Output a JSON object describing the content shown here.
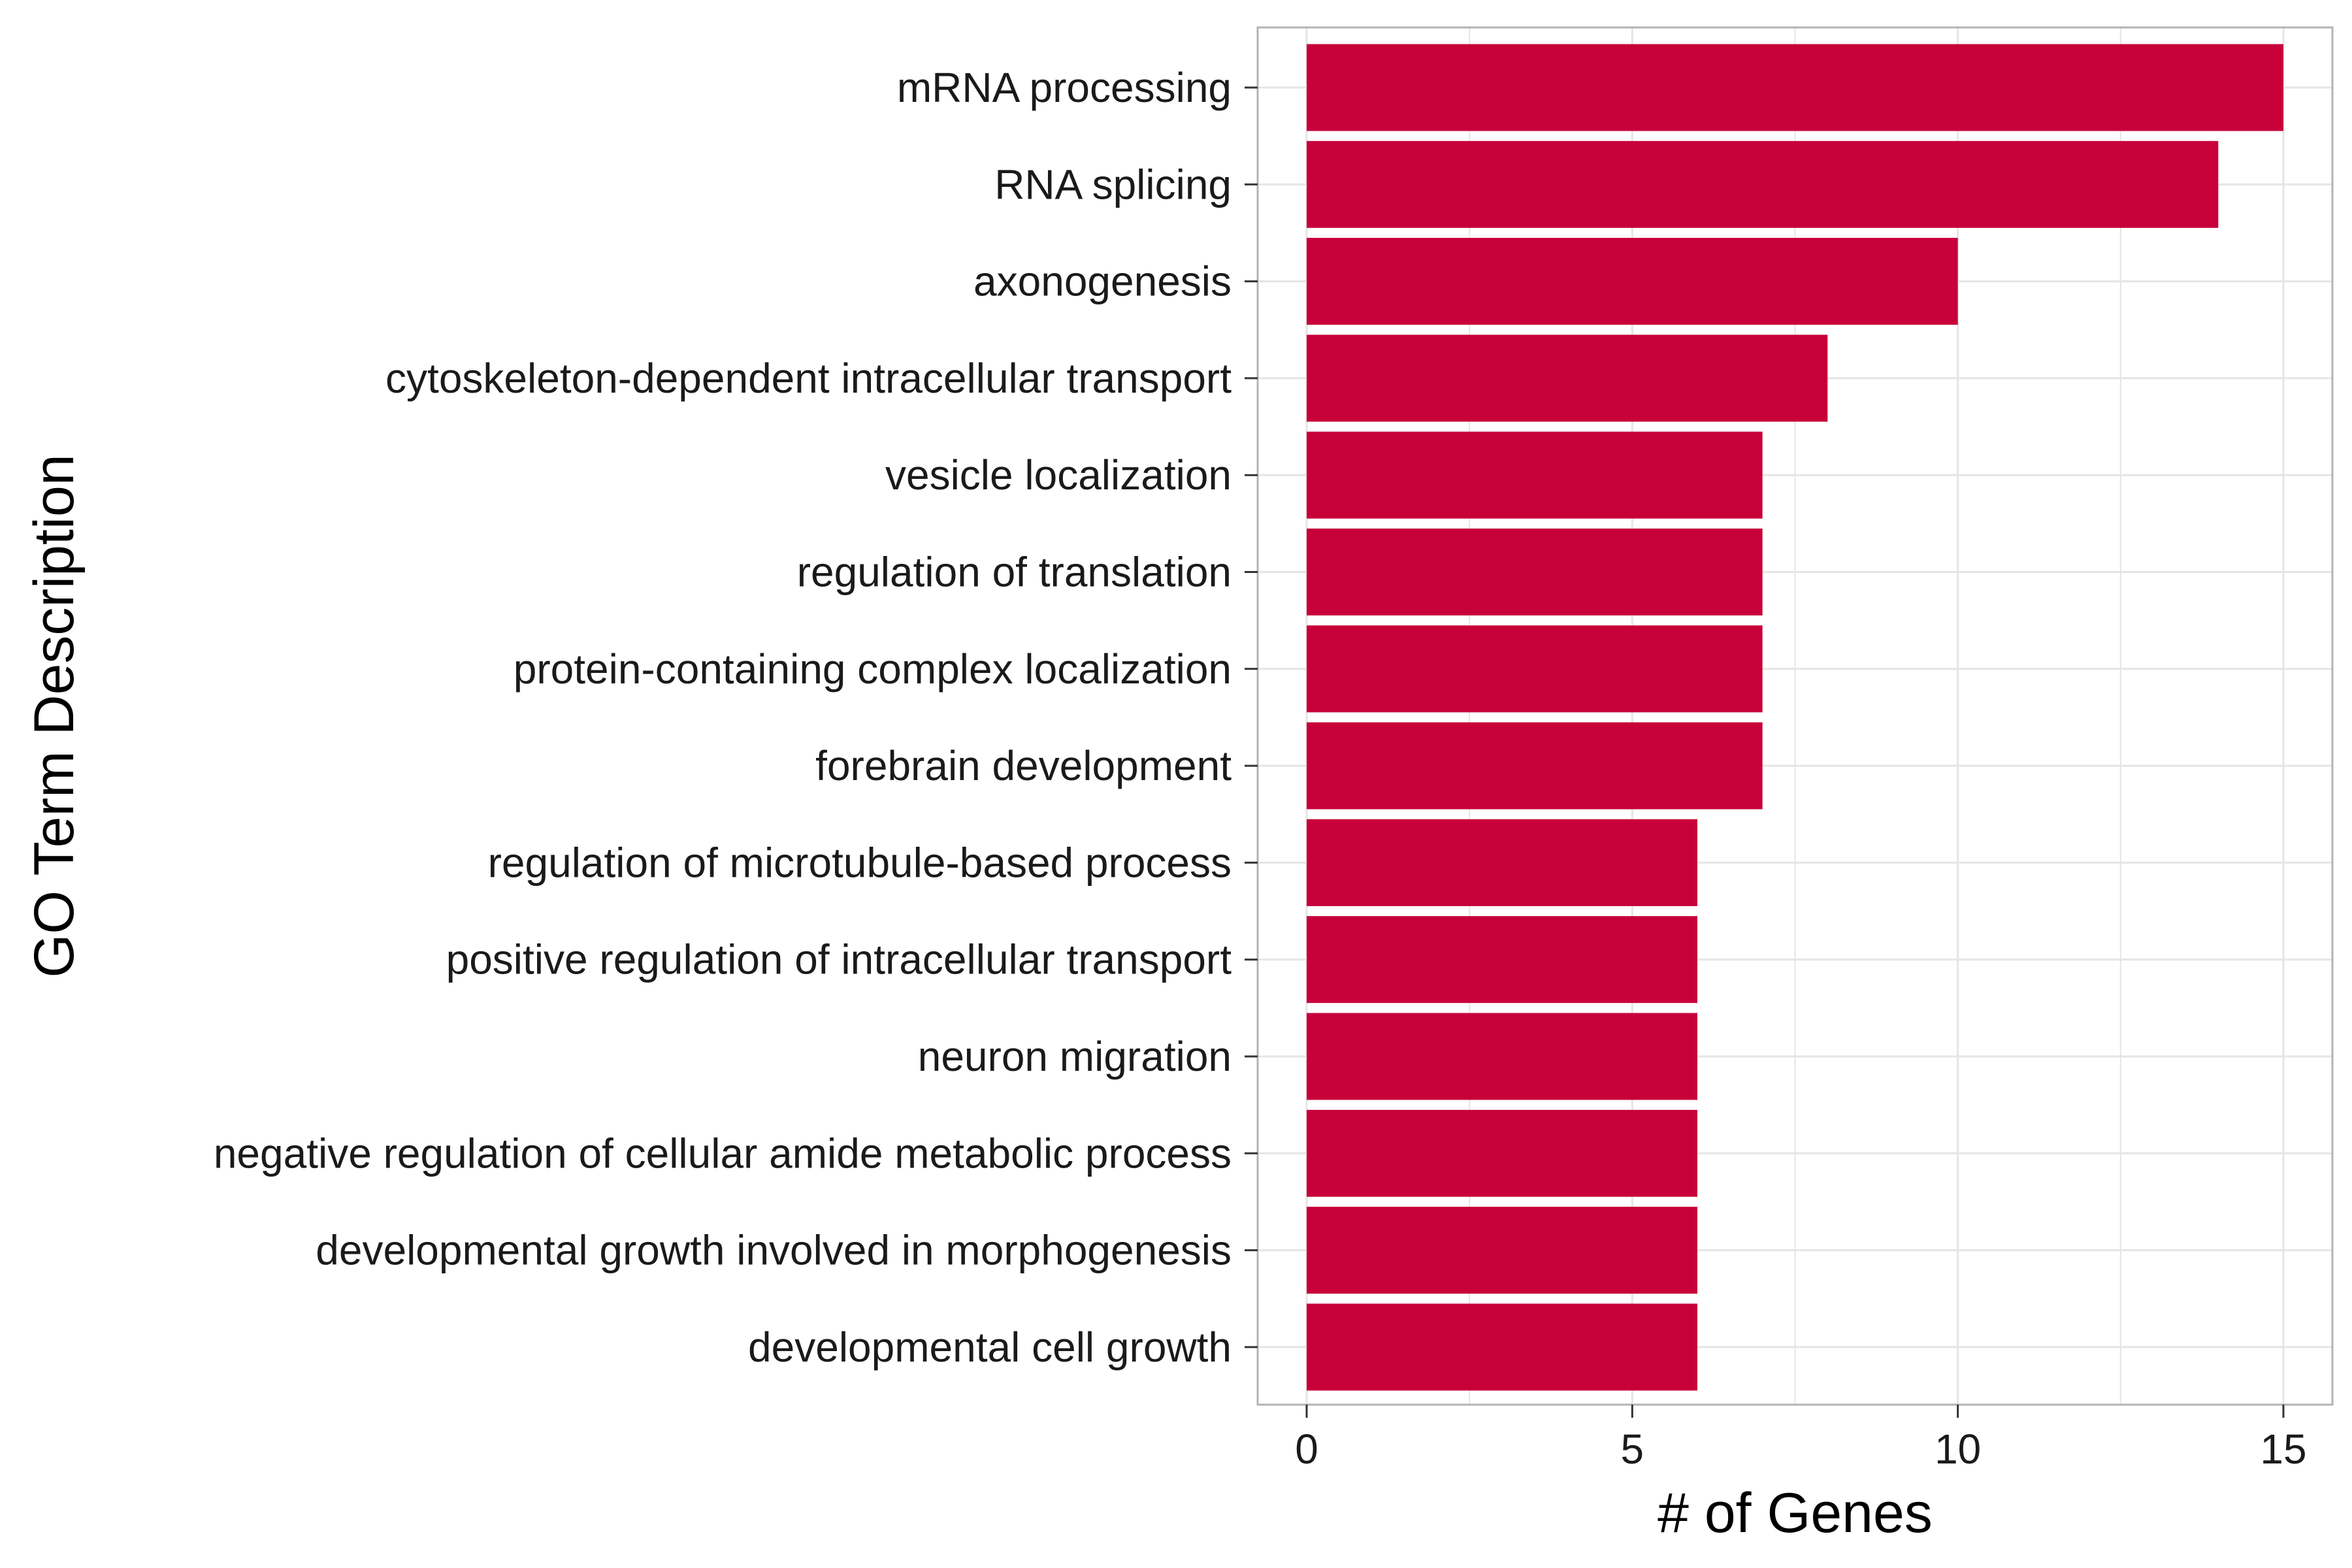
{
  "chart_data": {
    "type": "bar",
    "orientation": "horizontal",
    "categories": [
      "mRNA processing",
      "RNA splicing",
      "axonogenesis",
      "cytoskeleton-dependent intracellular transport",
      "vesicle localization",
      "regulation of translation",
      "protein-containing complex localization",
      "forebrain development",
      "regulation of microtubule-based process",
      "positive regulation of intracellular transport",
      "neuron migration",
      "negative regulation of cellular amide metabolic process",
      "developmental growth involved in morphogenesis",
      "developmental cell growth"
    ],
    "values": [
      15,
      14,
      10,
      8,
      7,
      7,
      7,
      7,
      6,
      6,
      6,
      6,
      6,
      6
    ],
    "xlabel": "# of Genes",
    "ylabel": "GO Term Description",
    "xlim": [
      0,
      15
    ],
    "x_ticks": [
      "0",
      "5",
      "10",
      "15"
    ],
    "grid": true,
    "legend": "none",
    "bar_color": "#C8003A",
    "grid_color": "#E5E5E5",
    "panel_border_color": "#B3B3B3"
  }
}
